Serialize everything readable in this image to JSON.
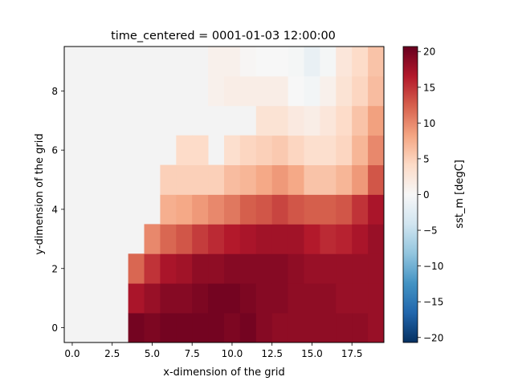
{
  "chart_data": {
    "type": "heatmap",
    "title": "time_centered = 0001-01-03 12:00:00",
    "xlabel": "x-dimension of the grid",
    "ylabel": "y-dimension of the grid",
    "colorbar_label": "sst_m [degC]",
    "colormap": "RdBu_r",
    "vmin": -20.7,
    "vmax": 20.7,
    "missing_color": "#f3f3f3",
    "x": [
      0,
      1,
      2,
      3,
      4,
      5,
      6,
      7,
      8,
      9,
      10,
      11,
      12,
      13,
      14,
      15,
      16,
      17,
      18,
      19
    ],
    "y": [
      0,
      1,
      2,
      3,
      4,
      5,
      6,
      7,
      8,
      9
    ],
    "xlim": [
      -0.5,
      19.5
    ],
    "ylim": [
      -0.5,
      9.5
    ],
    "x_ticks": [
      "0.0",
      "2.5",
      "5.0",
      "7.5",
      "10.0",
      "12.5",
      "15.0",
      "17.5"
    ],
    "x_tick_values": [
      0,
      2.5,
      5,
      7.5,
      10,
      12.5,
      15,
      17.5
    ],
    "y_ticks": [
      "0",
      "2",
      "4",
      "6",
      "8"
    ],
    "y_tick_values": [
      0,
      2,
      4,
      6,
      8
    ],
    "colorbar_ticks": [
      "20",
      "15",
      "10",
      "5",
      "0",
      "−5",
      "−10",
      "−15",
      "−20"
    ],
    "colorbar_tick_values": [
      20,
      15,
      10,
      5,
      0,
      -5,
      -10,
      -15,
      -20
    ],
    "z": [
      [
        null,
        null,
        null,
        null,
        20,
        19.5,
        20,
        20,
        20,
        20,
        19.5,
        20,
        19,
        18.5,
        18.5,
        18.5,
        18.5,
        18.5,
        18.5,
        18
      ],
      [
        null,
        null,
        null,
        null,
        17,
        18,
        19,
        19,
        19.5,
        20,
        20,
        19.5,
        19,
        19,
        18.5,
        18.5,
        18.5,
        18,
        18,
        18
      ],
      [
        null,
        null,
        null,
        null,
        12,
        15,
        17,
        17.5,
        18.5,
        18.5,
        19,
        19,
        19,
        19,
        18.5,
        18,
        18,
        18,
        18,
        18
      ],
      [
        null,
        null,
        null,
        null,
        null,
        10,
        12,
        13,
        14.5,
        15.5,
        16.5,
        17,
        17.5,
        17.5,
        17.5,
        16.5,
        15.5,
        16,
        17,
        18
      ],
      [
        null,
        null,
        null,
        null,
        null,
        null,
        7.5,
        8,
        9,
        10,
        11,
        12.5,
        13,
        14,
        13,
        12.5,
        12.5,
        13,
        15,
        17
      ],
      [
        null,
        null,
        null,
        null,
        null,
        null,
        5,
        5,
        5,
        5,
        6.5,
        7,
        8,
        9,
        8,
        6,
        6,
        7,
        9,
        13
      ],
      [
        null,
        null,
        null,
        null,
        null,
        null,
        null,
        4,
        4,
        null,
        3.5,
        4.5,
        5,
        5.5,
        4.5,
        3.5,
        3.5,
        4.5,
        7,
        10
      ],
      [
        null,
        null,
        null,
        null,
        null,
        null,
        null,
        null,
        null,
        null,
        null,
        null,
        3,
        3,
        2,
        1.5,
        2.5,
        4,
        6,
        8.5
      ],
      [
        null,
        null,
        null,
        null,
        null,
        null,
        null,
        null,
        null,
        1,
        1.5,
        1.5,
        1.5,
        1.5,
        0,
        -0.5,
        1,
        3,
        4.5,
        6.5
      ],
      [
        null,
        null,
        null,
        null,
        null,
        null,
        null,
        null,
        null,
        1,
        1,
        0.3,
        0,
        0,
        -0.3,
        -1.5,
        -0.3,
        2.5,
        4,
        6
      ]
    ]
  }
}
